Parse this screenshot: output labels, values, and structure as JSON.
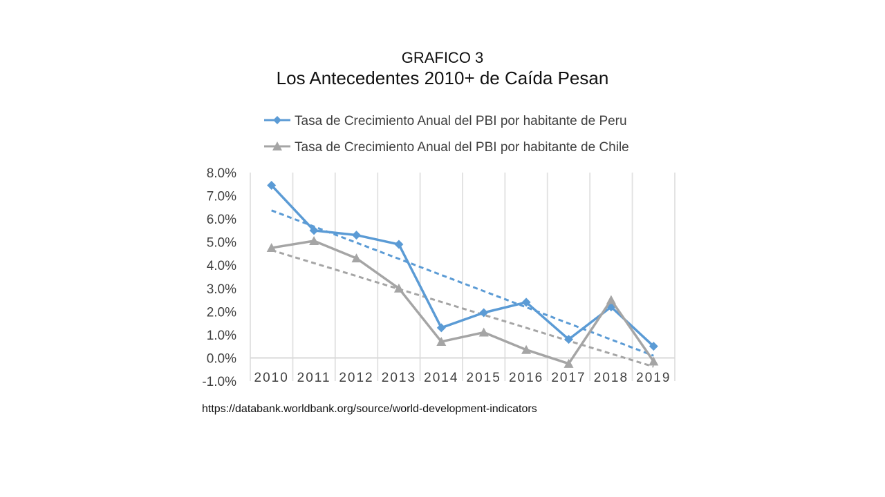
{
  "slide": {
    "title_line1": "GRAFICO 3",
    "title_line2": "Los Antecedentes 2010+ de Caída Pesan",
    "source": "https://databank.worldbank.org/source/world-development-indicators"
  },
  "chart_data": {
    "type": "line",
    "x": [
      "2010",
      "2011",
      "2012",
      "2013",
      "2014",
      "2015",
      "2016",
      "2017",
      "2018",
      "2019"
    ],
    "series": [
      {
        "name": "Tasa de Crecimiento Anual del PBI por habitante de Peru",
        "color": "#5b9bd5",
        "marker": "diamond",
        "values": [
          7.45,
          5.5,
          5.3,
          4.9,
          1.3,
          1.95,
          2.4,
          0.8,
          2.2,
          0.5
        ],
        "trendline": "linear"
      },
      {
        "name": "Tasa de Crecimiento Anual del PBI por habitante de Chile",
        "color": "#a5a5a5",
        "marker": "triangle",
        "values": [
          4.75,
          5.05,
          4.3,
          3.0,
          0.7,
          1.1,
          0.35,
          -0.25,
          2.5,
          -0.15
        ],
        "trendline": "linear"
      }
    ],
    "ylim": [
      -1.0,
      8.0
    ],
    "yticks": [
      "8.0%",
      "7.0%",
      "6.0%",
      "5.0%",
      "4.0%",
      "3.0%",
      "2.0%",
      "1.0%",
      "0.0%",
      "-1.0%"
    ],
    "ytick_values": [
      8,
      7,
      6,
      5,
      4,
      3,
      2,
      1,
      0,
      -1
    ],
    "grid": "vertical",
    "legend": "top"
  }
}
